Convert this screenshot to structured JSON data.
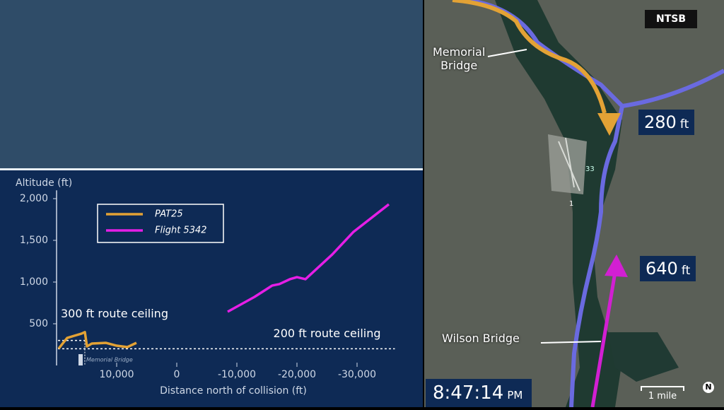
{
  "chart_data": {
    "type": "line",
    "y_label": "Altitude (ft)",
    "x_label": "Distance north of collision (ft)",
    "xlim": [
      20000,
      -37000
    ],
    "ylim": [
      0,
      2100
    ],
    "xticks": [
      {
        "value": 10000,
        "label": "10,000"
      },
      0,
      {
        "value": -10000,
        "label": "-10,000"
      },
      {
        "value": -20000,
        "label": "-20,000"
      },
      {
        "value": -30000,
        "label": "-30,000"
      }
    ],
    "yticks": [
      {
        "value": 500,
        "label": "500"
      },
      {
        "value": 1000,
        "label": "1,000"
      },
      {
        "value": 1500,
        "label": "1,500"
      },
      {
        "value": 2000,
        "label": "2,000"
      }
    ],
    "series": [
      {
        "name": "PAT25",
        "color": "#e3a235",
        "x": [
          19650,
          18240,
          17060,
          15880,
          15290,
          14940,
          14120,
          11760,
          10000,
          8240,
          6710
        ],
        "values": [
          203,
          330,
          356,
          381,
          400,
          229,
          263,
          271,
          237,
          220,
          271
        ]
      },
      {
        "name": "Flight 5342",
        "color": "#e61ee6",
        "x": [
          -8470,
          -12940,
          -15880,
          -17060,
          -18820,
          -20000,
          -21410,
          -25880,
          -29410,
          -35290
        ],
        "values": [
          644,
          822,
          958,
          975,
          1034,
          1059,
          1034,
          1331,
          1602,
          1932
        ]
      }
    ],
    "reference_lines": [
      {
        "value": 300,
        "label": "300 ft route ceiling",
        "x_end": 15300
      },
      {
        "value": 200,
        "label": "200 ft route ceiling"
      }
    ],
    "marker": {
      "x": 16000,
      "label": "Memorial Bridge"
    }
  },
  "map": {
    "source": "NTSB",
    "labels": [
      "Memorial\nBridge",
      "Wilson Bridge",
      "33",
      "1"
    ],
    "altitude_labels": [
      {
        "value": "280",
        "unit": "ft"
      },
      {
        "value": "640",
        "unit": "ft"
      }
    ],
    "time": {
      "value": "8:47:14",
      "unit": "PM"
    },
    "scale": "1 mile",
    "compass": "N"
  }
}
